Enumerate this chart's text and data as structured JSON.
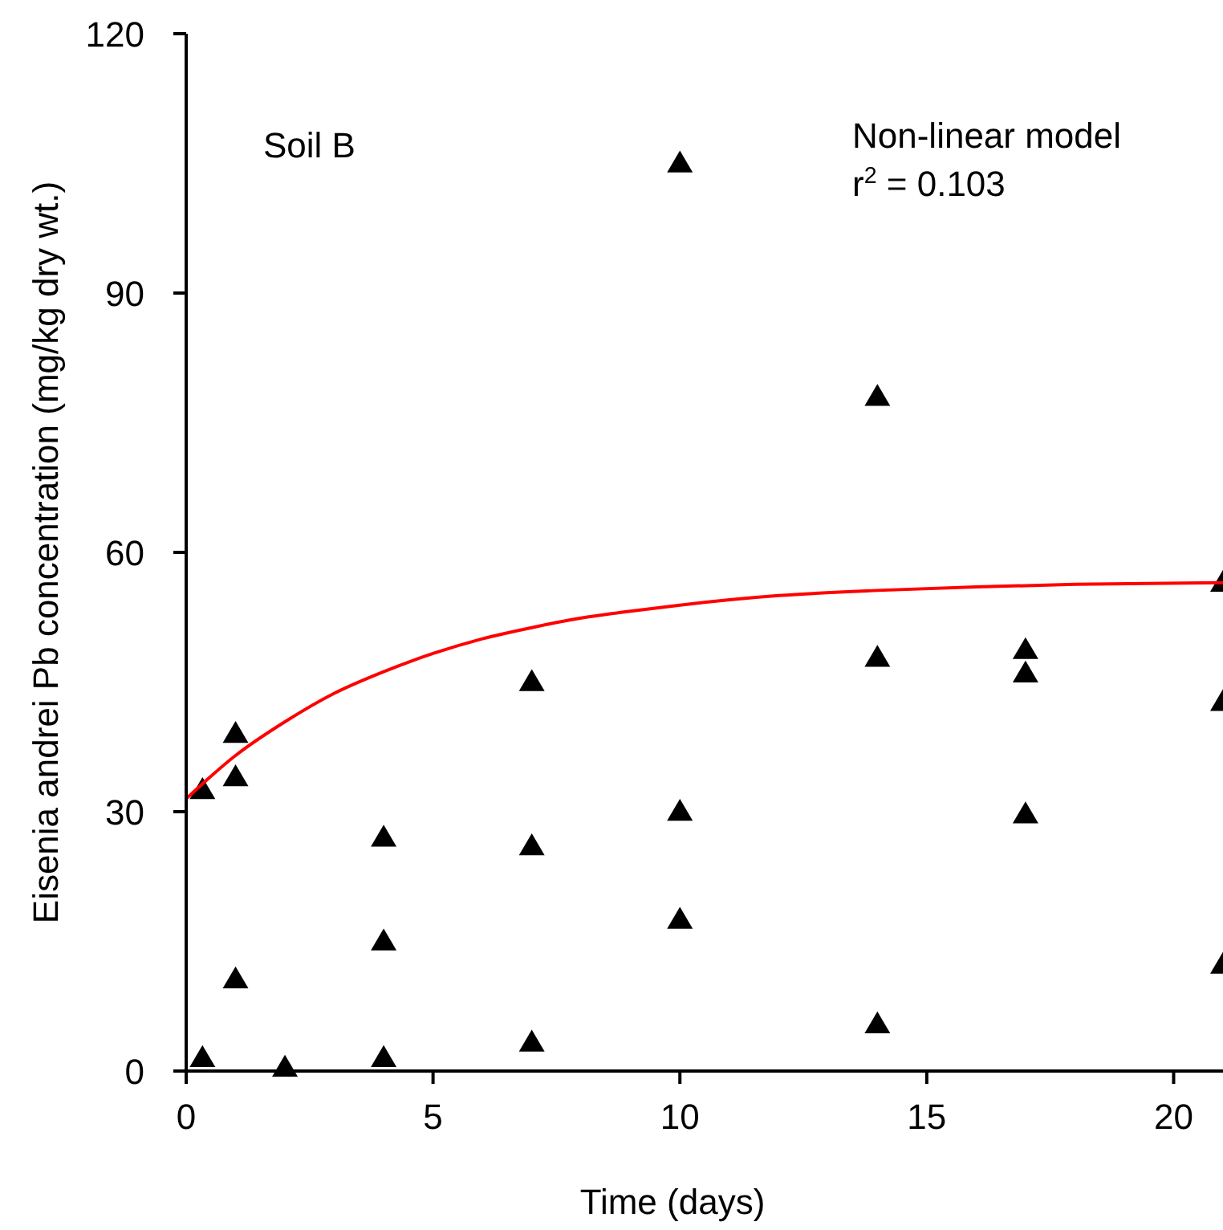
{
  "chart_data": {
    "type": "scatter",
    "xlabel": "Time (days)",
    "ylabel": "Eisenia andrei Pb concentration (mg/kg dry wt.)",
    "xlim": [
      0,
      21
    ],
    "xticks": [
      0,
      5,
      10,
      15,
      20
    ],
    "ylim": [
      0,
      120
    ],
    "yticks": [
      0,
      30,
      60,
      90,
      120
    ],
    "grid": false,
    "marker": "triangle",
    "annotations": [
      "Soil B",
      "Non-linear model",
      "r$^{2}$ = 0.103"
    ],
    "series": [
      {
        "color": "#000000",
        "x": [
          0.33,
          0.33,
          1,
          1,
          1,
          2,
          4,
          4,
          4,
          7,
          7,
          7,
          10,
          10,
          10,
          14,
          14,
          14,
          17,
          17,
          17,
          21,
          21,
          21
        ],
        "values": [
          1.5,
          32.5,
          39,
          34,
          10.6,
          0.4,
          27,
          15,
          1.5,
          45,
          26,
          3.3,
          105,
          30,
          17.5,
          78,
          47.8,
          5.4,
          48.7,
          46,
          29.7,
          56.5,
          42.7,
          12.3
        ]
      },
      {
        "type": "line",
        "color": "#ff0000",
        "marker": "none",
        "x": [
          0,
          1,
          2,
          3,
          4,
          5,
          6,
          7,
          8,
          9,
          10,
          12,
          14,
          16,
          18,
          21
        ],
        "values": [
          31.5,
          36.5,
          40.4,
          43.7,
          46.2,
          48.3,
          50.0,
          51.3,
          52.4,
          53.2,
          53.9,
          55.0,
          55.6,
          56.0,
          56.3,
          56.5
        ]
      }
    ]
  }
}
